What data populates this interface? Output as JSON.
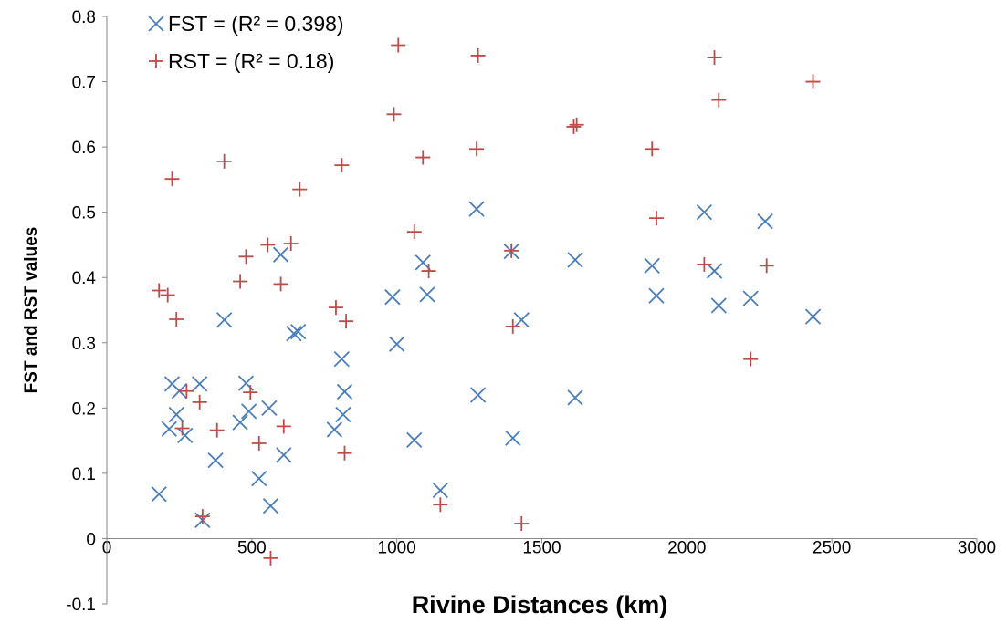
{
  "chart_data": {
    "type": "scatter",
    "xlabel": "Rivine Distances (km)",
    "ylabel": "FST  and RST values",
    "xlim": [
      0,
      3000
    ],
    "ylim": [
      -0.1,
      0.8
    ],
    "x_ticks": [
      "0",
      "500",
      "1000",
      "1500",
      "2000",
      "2500",
      "3000"
    ],
    "y_ticks": [
      "-0.1",
      "0",
      "0.1",
      "0.2",
      "0.3",
      "0.4",
      "0.5",
      "0.6",
      "0.7",
      "0.8"
    ],
    "grid": false,
    "legend_position": "top-left",
    "series": [
      {
        "name": "FST = (R² = 0.398)",
        "marker": "x",
        "color": "#4a7ebb",
        "points": [
          [
            180,
            0.068
          ],
          [
            215,
            0.168
          ],
          [
            225,
            0.237
          ],
          [
            240,
            0.19
          ],
          [
            250,
            0.226
          ],
          [
            270,
            0.158
          ],
          [
            320,
            0.237
          ],
          [
            330,
            0.028
          ],
          [
            375,
            0.12
          ],
          [
            405,
            0.335
          ],
          [
            460,
            0.178
          ],
          [
            480,
            0.238
          ],
          [
            490,
            0.195
          ],
          [
            525,
            0.092
          ],
          [
            560,
            0.2
          ],
          [
            565,
            0.05
          ],
          [
            600,
            0.435
          ],
          [
            610,
            0.128
          ],
          [
            645,
            0.314
          ],
          [
            660,
            0.317
          ],
          [
            785,
            0.167
          ],
          [
            810,
            0.275
          ],
          [
            815,
            0.19
          ],
          [
            820,
            0.225
          ],
          [
            985,
            0.37
          ],
          [
            1000,
            0.298
          ],
          [
            1060,
            0.151
          ],
          [
            1090,
            0.423
          ],
          [
            1105,
            0.374
          ],
          [
            1150,
            0.074
          ],
          [
            1275,
            0.505
          ],
          [
            1280,
            0.22
          ],
          [
            1395,
            0.44
          ],
          [
            1400,
            0.154
          ],
          [
            1430,
            0.335
          ],
          [
            1615,
            0.427
          ],
          [
            1615,
            0.216
          ],
          [
            1880,
            0.418
          ],
          [
            1895,
            0.372
          ],
          [
            2060,
            0.5
          ],
          [
            2095,
            0.41
          ],
          [
            2110,
            0.357
          ],
          [
            2220,
            0.368
          ],
          [
            2270,
            0.486
          ],
          [
            2435,
            0.34
          ]
        ]
      },
      {
        "name": "RST = (R² = 0.18)",
        "marker": "+",
        "color": "#be4b48",
        "points": [
          [
            180,
            0.38
          ],
          [
            210,
            0.373
          ],
          [
            225,
            0.551
          ],
          [
            240,
            0.336
          ],
          [
            260,
            0.169
          ],
          [
            275,
            0.226
          ],
          [
            320,
            0.209
          ],
          [
            330,
            0.034
          ],
          [
            380,
            0.166
          ],
          [
            405,
            0.578
          ],
          [
            460,
            0.394
          ],
          [
            480,
            0.432
          ],
          [
            495,
            0.224
          ],
          [
            525,
            0.146
          ],
          [
            555,
            0.45
          ],
          [
            565,
            -0.03
          ],
          [
            600,
            0.39
          ],
          [
            610,
            0.172
          ],
          [
            635,
            0.452
          ],
          [
            665,
            0.535
          ],
          [
            790,
            0.354
          ],
          [
            810,
            0.572
          ],
          [
            820,
            0.131
          ],
          [
            825,
            0.333
          ],
          [
            990,
            0.65
          ],
          [
            1005,
            0.756
          ],
          [
            1060,
            0.47
          ],
          [
            1090,
            0.584
          ],
          [
            1110,
            0.41
          ],
          [
            1150,
            0.052
          ],
          [
            1275,
            0.597
          ],
          [
            1280,
            0.74
          ],
          [
            1395,
            0.441
          ],
          [
            1400,
            0.325
          ],
          [
            1430,
            0.023
          ],
          [
            1610,
            0.631
          ],
          [
            1620,
            0.634
          ],
          [
            1880,
            0.597
          ],
          [
            1895,
            0.491
          ],
          [
            2060,
            0.42
          ],
          [
            2095,
            0.737
          ],
          [
            2110,
            0.672
          ],
          [
            2220,
            0.275
          ],
          [
            2275,
            0.418
          ],
          [
            2435,
            0.7
          ]
        ]
      }
    ]
  }
}
